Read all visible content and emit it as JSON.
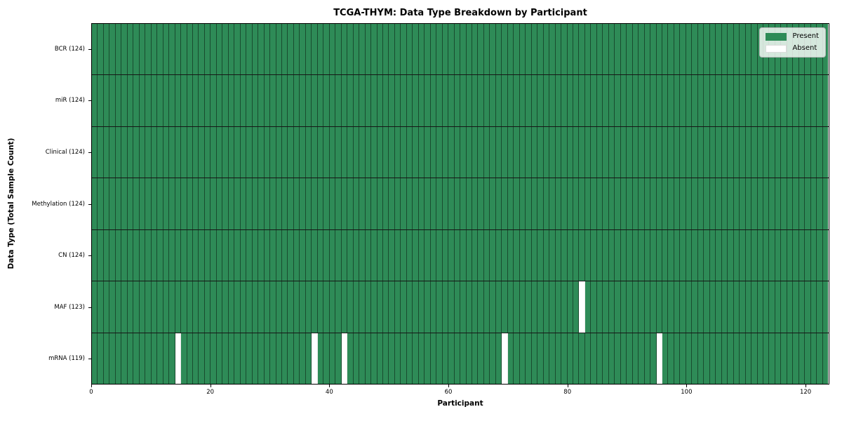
{
  "chart_data": {
    "type": "heatmap",
    "title": "TCGA-THYM: Data Type Breakdown by Participant",
    "xlabel": "Participant",
    "ylabel": "Data Type (Total Sample Count)",
    "n_participants": 124,
    "xlim": [
      0,
      124
    ],
    "x_ticks": [
      0,
      20,
      40,
      60,
      80,
      100,
      120
    ],
    "rows": [
      {
        "label": "BCR (124)",
        "total": 124,
        "absent_participants": []
      },
      {
        "label": "miR (124)",
        "total": 124,
        "absent_participants": []
      },
      {
        "label": "Clinical (124)",
        "total": 124,
        "absent_participants": []
      },
      {
        "label": "Methylation (124)",
        "total": 124,
        "absent_participants": []
      },
      {
        "label": "CN (124)",
        "total": 124,
        "absent_participants": []
      },
      {
        "label": "MAF (123)",
        "total": 123,
        "absent_participants": [
          82
        ]
      },
      {
        "label": "mRNA (119)",
        "total": 119,
        "absent_participants": [
          14,
          37,
          42,
          69,
          95
        ]
      }
    ],
    "legend": [
      {
        "label": "Present",
        "color": "#2e8b57"
      },
      {
        "label": "Absent",
        "color": "#ffffff"
      }
    ],
    "colors": {
      "present": "#2e8b57",
      "absent": "#ffffff",
      "cell_edge": "rgba(0,0,0,0.45)",
      "row_separator": "#161616",
      "frame": "#000000"
    },
    "legend_position": "upper right",
    "grid": "cell-borders"
  }
}
